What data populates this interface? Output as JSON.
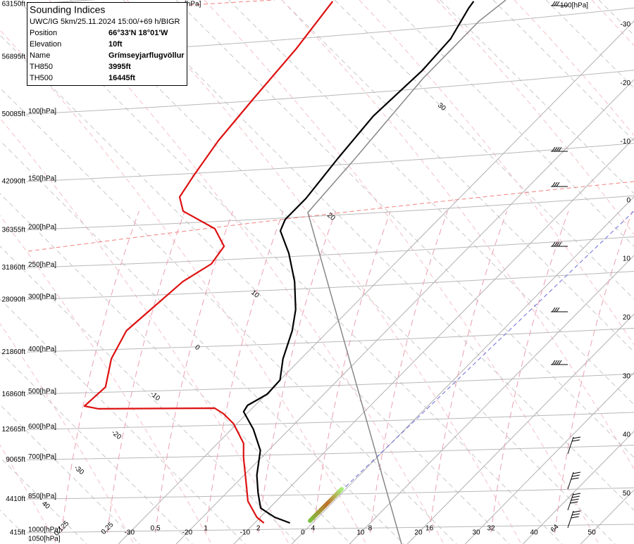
{
  "info": {
    "title": "Sounding Indices",
    "subtitle": "UWC/IG 5km/25.11.2024 15:00/+69 h/BIGR",
    "rows": [
      [
        "Position",
        "66°33'N 18°01'W"
      ],
      [
        "Elevation",
        "10ft"
      ],
      [
        "Name",
        "Grímseyjarflugvöllur"
      ],
      [
        "TH850",
        "3995ft"
      ],
      [
        "TH500",
        "16445ft"
      ]
    ]
  },
  "chart_data": {
    "type": "skew-t",
    "ylim": [
      -920,
      63640
    ],
    "yticks": [
      {
        "value": 415,
        "label": "415ft"
      },
      {
        "value": 4410,
        "label": "4410ft"
      },
      {
        "value": 9065,
        "label": "9065ft"
      },
      {
        "value": 12665,
        "label": "12665ft"
      },
      {
        "value": 16860,
        "label": "16860ft"
      },
      {
        "value": 21860,
        "label": "21860ft"
      },
      {
        "value": 28090,
        "label": "28090ft"
      },
      {
        "value": 31860,
        "label": "31860ft"
      },
      {
        "value": 36355,
        "label": "36355ft"
      },
      {
        "value": 42090,
        "label": "42090ft"
      },
      {
        "value": 50085,
        "label": "50085ft"
      },
      {
        "value": 56895,
        "label": "56895ft"
      },
      {
        "value": 63150,
        "label": "63150ft"
      }
    ],
    "pressure_labels": [
      "1000[hPa]",
      "850[hPa]",
      "700[hPa]",
      "600[hPa]",
      "500[hPa]",
      "400[hPa]",
      "300[hPa]",
      "250[hPa]",
      "200[hPa]",
      "150[hPa]",
      "100[hPa]",
      null,
      null
    ],
    "extra_pressure_labels": [
      "1050[hPa]",
      "[hPa]"
    ],
    "wind_label": "100[hPa]",
    "xlim": [
      -52.4,
      57.3
    ],
    "xticks": [
      -30,
      -20,
      -10,
      0,
      10,
      20,
      30,
      40,
      50
    ],
    "mixing_ratio_labels": [
      0.125,
      0.25,
      0.5,
      1,
      2,
      4,
      8,
      16,
      32,
      64
    ],
    "adiabat_labels": [
      30,
      20,
      10,
      0,
      -10,
      -20,
      -30,
      40
    ],
    "series": [
      {
        "color": "#000000",
        "x": [
          1580,
          2250,
          3340,
          5180,
          7260,
          10190,
          12690,
          14780,
          15530,
          16870,
          18540,
          21050,
          24390,
          26890,
          30240,
          33580,
          36250,
          37590,
          40090,
          44850,
          49870,
          55300,
          59050,
          62650,
          63480
        ],
        "values": [
          -3.9,
          -7.5,
          -11.5,
          -14.6,
          -17.8,
          -21.4,
          -26.2,
          -30.9,
          -31.3,
          -29.8,
          -30.0,
          -33.1,
          -36.3,
          -39.3,
          -44.3,
          -50.1,
          -55.4,
          -56.5,
          -56.5,
          -57.8,
          -58.9,
          -58.2,
          -58.7,
          -60.8,
          -61.1
        ]
      },
      {
        "color": "#dd1111",
        "x": [
          1580,
          2250,
          4170,
          6010,
          9350,
          11020,
          13360,
          14530,
          15200,
          15120,
          15450,
          17710,
          21050,
          24390,
          27310,
          30240,
          32320,
          34410,
          36500,
          38590,
          40260,
          42770,
          46940,
          51950,
          57800,
          63480
        ],
        "values": [
          -8.4,
          -10.6,
          -14.9,
          -17.8,
          -23.1,
          -25.5,
          -30.6,
          -34.0,
          -36.5,
          -56.5,
          -59.4,
          -59.0,
          -62.8,
          -65.0,
          -64.3,
          -63.6,
          -61.7,
          -62.5,
          -67.1,
          -75.6,
          -78.6,
          -79.8,
          -81.5,
          -82.6,
          -83.7,
          -85.5
        ]
      }
    ]
  }
}
